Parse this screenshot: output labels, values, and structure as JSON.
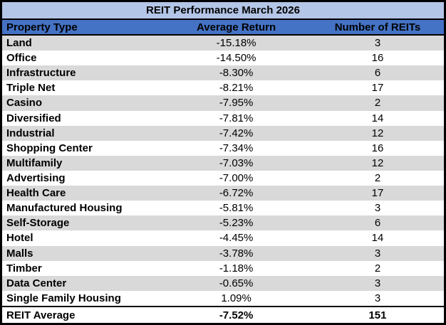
{
  "colors": {
    "title_bg": "#b4c6e7",
    "header_bg": "#4472c4",
    "stripe": "#d9d9d9",
    "border": "#000000"
  },
  "chart_data": {
    "type": "table",
    "title": "REIT Performance March 2026",
    "columns": [
      "Property Type",
      "Average Return",
      "Number of REITs"
    ],
    "rows": [
      [
        "Land",
        "-15.18%",
        "3"
      ],
      [
        "Office",
        "-14.50%",
        "16"
      ],
      [
        "Infrastructure",
        "-8.30%",
        "6"
      ],
      [
        "Triple Net",
        "-8.21%",
        "17"
      ],
      [
        "Casino",
        "-7.95%",
        "2"
      ],
      [
        "Diversified",
        "-7.81%",
        "14"
      ],
      [
        "Industrial",
        "-7.42%",
        "12"
      ],
      [
        "Shopping Center",
        "-7.34%",
        "16"
      ],
      [
        "Multifamily",
        "-7.03%",
        "12"
      ],
      [
        "Advertising",
        "-7.00%",
        "2"
      ],
      [
        "Health Care",
        "-6.72%",
        "17"
      ],
      [
        "Manufactured Housing",
        "-5.81%",
        "3"
      ],
      [
        "Self-Storage",
        "-5.23%",
        "6"
      ],
      [
        "Hotel",
        "-4.45%",
        "14"
      ],
      [
        "Malls",
        "-3.78%",
        "3"
      ],
      [
        "Timber",
        "-1.18%",
        "2"
      ],
      [
        "Data Center",
        "-0.65%",
        "3"
      ],
      [
        "Single Family Housing",
        "1.09%",
        "3"
      ]
    ],
    "footer": [
      "REIT Average",
      "-7.52%",
      "151"
    ],
    "layout": {
      "title_align": "center",
      "property_align": "left",
      "numeric_align": "center",
      "striped": true,
      "first_data_row_shaded": true
    }
  }
}
